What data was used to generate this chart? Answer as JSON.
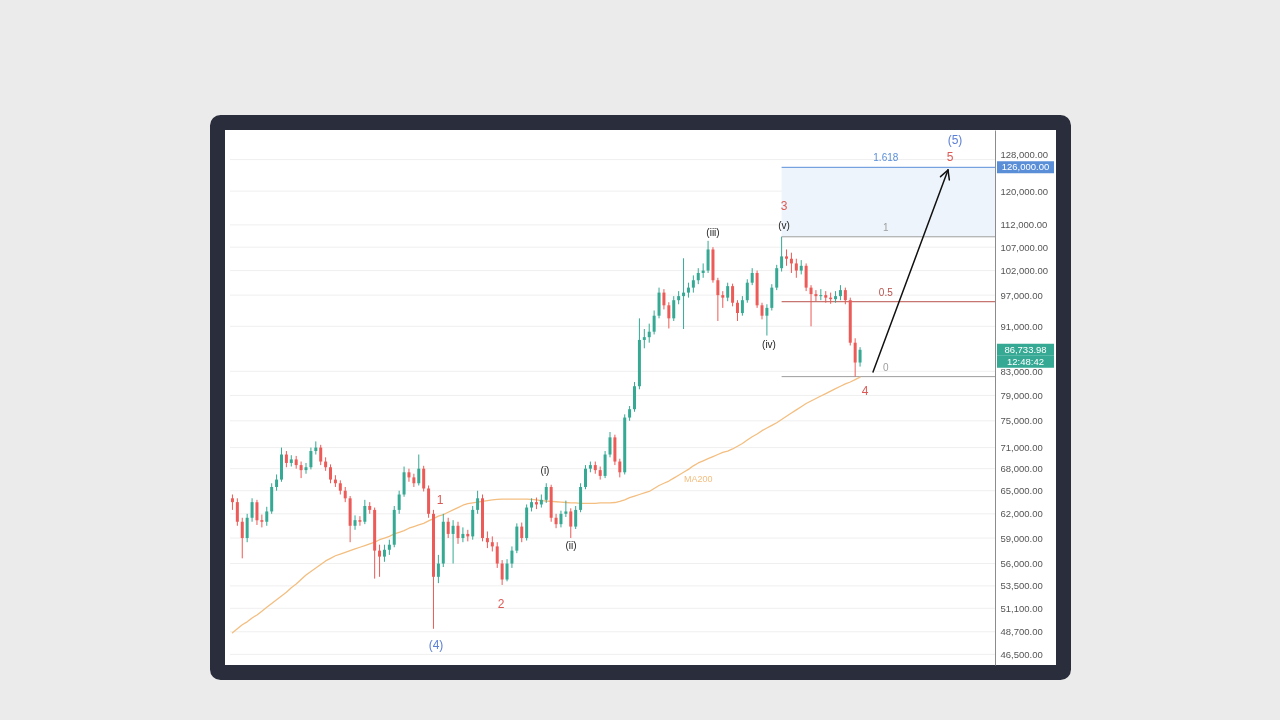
{
  "chart_data": {
    "type": "candlestick",
    "categories": [
      null,
      null,
      null,
      null,
      null,
      null,
      null,
      null,
      null,
      null,
      null,
      null,
      null,
      null,
      null,
      null,
      null,
      null,
      null,
      null,
      null,
      null,
      null,
      null,
      null,
      null,
      null,
      null,
      null,
      null,
      null,
      null,
      null,
      null,
      null,
      null,
      null,
      null,
      null,
      null,
      null,
      null,
      null,
      null,
      null,
      null,
      null,
      null,
      null,
      null,
      null,
      null,
      null,
      null,
      null,
      null,
      null,
      null,
      null,
      null,
      null,
      null,
      null,
      null,
      null,
      null,
      null,
      null,
      null,
      null,
      null,
      null,
      null,
      null,
      null,
      null,
      null,
      null,
      null,
      null,
      null,
      null,
      null,
      null,
      null,
      null,
      null,
      null,
      null,
      null,
      null,
      null,
      null,
      null,
      null,
      null,
      null,
      null,
      null,
      null,
      null,
      null,
      null,
      null,
      null,
      null,
      null,
      null,
      null,
      null,
      null,
      null,
      null,
      null,
      null,
      null,
      null,
      null,
      null,
      null,
      null,
      null,
      null,
      null,
      null,
      null,
      null,
      null,
      null
    ],
    "ohlc": [
      [
        64000,
        64500,
        62500,
        63500
      ],
      [
        63500,
        64000,
        60500,
        61000
      ],
      [
        61000,
        61500,
        56600,
        59000
      ],
      [
        59000,
        62000,
        58500,
        61500
      ],
      [
        61500,
        64000,
        61000,
        63500
      ],
      [
        63500,
        63800,
        60600,
        61200
      ],
      [
        61200,
        61900,
        60300,
        61000
      ],
      [
        61000,
        62900,
        60500,
        62300
      ],
      [
        62300,
        66000,
        62000,
        65500
      ],
      [
        65500,
        67200,
        65000,
        66500
      ],
      [
        66500,
        71000,
        66200,
        70000
      ],
      [
        70000,
        70500,
        68200,
        68800
      ],
      [
        68800,
        69900,
        68300,
        69300
      ],
      [
        69300,
        69800,
        68000,
        68500
      ],
      [
        68500,
        69000,
        66700,
        67800
      ],
      [
        67800,
        68800,
        67300,
        68200
      ],
      [
        68200,
        71000,
        67900,
        70500
      ],
      [
        70500,
        71900,
        70000,
        71000
      ],
      [
        71000,
        71400,
        68500,
        69000
      ],
      [
        69000,
        69600,
        67700,
        68200
      ],
      [
        68200,
        68600,
        66000,
        66500
      ],
      [
        66500,
        67100,
        65500,
        66000
      ],
      [
        66000,
        66400,
        64500,
        65000
      ],
      [
        65000,
        65500,
        63500,
        64000
      ],
      [
        64000,
        64300,
        58500,
        60500
      ],
      [
        60500,
        61800,
        60000,
        61200
      ],
      [
        61200,
        61700,
        60500,
        61000
      ],
      [
        61000,
        63800,
        60700,
        63000
      ],
      [
        63000,
        63500,
        62000,
        62500
      ],
      [
        62500,
        62800,
        54300,
        57500
      ],
      [
        57500,
        58200,
        54500,
        56800
      ],
      [
        56800,
        58200,
        56200,
        57600
      ],
      [
        57600,
        58800,
        57000,
        58200
      ],
      [
        58200,
        63000,
        57900,
        62500
      ],
      [
        62500,
        65000,
        62000,
        64500
      ],
      [
        64500,
        68300,
        64200,
        67500
      ],
      [
        67500,
        68000,
        66200,
        66800
      ],
      [
        66800,
        67300,
        65500,
        66000
      ],
      [
        66000,
        70000,
        65700,
        68000
      ],
      [
        68000,
        68400,
        64900,
        65300
      ],
      [
        65300,
        65700,
        61500,
        62000
      ],
      [
        62000,
        62500,
        49000,
        54500
      ],
      [
        54500,
        57000,
        53800,
        56000
      ],
      [
        56000,
        62000,
        55600,
        61000
      ],
      [
        61000,
        61500,
        59000,
        59500
      ],
      [
        59500,
        61200,
        56000,
        60500
      ],
      [
        60500,
        61000,
        58300,
        59000
      ],
      [
        59000,
        60300,
        58500,
        59500
      ],
      [
        59500,
        60000,
        58600,
        59200
      ],
      [
        59200,
        63000,
        58800,
        62500
      ],
      [
        62500,
        65000,
        62000,
        64000
      ],
      [
        64000,
        64500,
        58600,
        59000
      ],
      [
        59000,
        59800,
        57800,
        58500
      ],
      [
        58500,
        59200,
        57400,
        58000
      ],
      [
        58000,
        58500,
        55500,
        56000
      ],
      [
        56000,
        56400,
        53600,
        54200
      ],
      [
        54200,
        56500,
        54000,
        56000
      ],
      [
        56000,
        58000,
        55500,
        57500
      ],
      [
        57500,
        60800,
        57200,
        60400
      ],
      [
        60400,
        60900,
        58500,
        59000
      ],
      [
        59000,
        63200,
        58700,
        62800
      ],
      [
        62800,
        64000,
        62300,
        63500
      ],
      [
        63500,
        64100,
        62600,
        63200
      ],
      [
        63200,
        64500,
        62800,
        63800
      ],
      [
        63800,
        66000,
        63400,
        65500
      ],
      [
        65500,
        65800,
        61000,
        61500
      ],
      [
        61500,
        62000,
        60200,
        60700
      ],
      [
        60700,
        62400,
        60300,
        62000
      ],
      [
        62000,
        63700,
        61600,
        62300
      ],
      [
        62300,
        62700,
        59000,
        60400
      ],
      [
        60400,
        63000,
        60100,
        62500
      ],
      [
        62500,
        66000,
        62200,
        65500
      ],
      [
        65500,
        68500,
        65200,
        68000
      ],
      [
        68000,
        69000,
        67500,
        68500
      ],
      [
        68500,
        69000,
        67300,
        67800
      ],
      [
        67800,
        68300,
        66500,
        67000
      ],
      [
        67000,
        70500,
        66700,
        70000
      ],
      [
        70000,
        73300,
        69600,
        72500
      ],
      [
        72500,
        72900,
        68500,
        69000
      ],
      [
        69000,
        69400,
        66800,
        67500
      ],
      [
        67500,
        76000,
        67200,
        75500
      ],
      [
        75500,
        77300,
        75000,
        76800
      ],
      [
        76800,
        81200,
        76400,
        80500
      ],
      [
        80500,
        92500,
        80000,
        88500
      ],
      [
        88500,
        90500,
        87000,
        89000
      ],
      [
        89000,
        91500,
        88000,
        90000
      ],
      [
        90000,
        94000,
        89500,
        93000
      ],
      [
        93000,
        98500,
        92500,
        97500
      ],
      [
        97500,
        98200,
        94200,
        95000
      ],
      [
        95000,
        95600,
        90600,
        92500
      ],
      [
        92500,
        96800,
        92000,
        96000
      ],
      [
        96000,
        97800,
        95200,
        96800
      ],
      [
        96800,
        104600,
        90500,
        97500
      ],
      [
        97500,
        99500,
        96500,
        98500
      ],
      [
        98500,
        101000,
        97500,
        100000
      ],
      [
        100000,
        102500,
        99200,
        101500
      ],
      [
        101500,
        103500,
        100500,
        102000
      ],
      [
        102000,
        108400,
        101500,
        106500
      ],
      [
        106500,
        107000,
        99500,
        100000
      ],
      [
        100000,
        100500,
        92000,
        97000
      ],
      [
        97000,
        97800,
        94500,
        96500
      ],
      [
        96500,
        99500,
        95800,
        98800
      ],
      [
        98800,
        99300,
        94800,
        95500
      ],
      [
        95500,
        96000,
        92000,
        93500
      ],
      [
        93500,
        96800,
        93000,
        96000
      ],
      [
        96000,
        100200,
        95500,
        99500
      ],
      [
        99500,
        102500,
        99000,
        101500
      ],
      [
        101500,
        102000,
        94500,
        95000
      ],
      [
        95000,
        95500,
        92300,
        93000
      ],
      [
        93000,
        95200,
        89300,
        94500
      ],
      [
        94500,
        99200,
        94000,
        98500
      ],
      [
        98500,
        103200,
        98000,
        102500
      ],
      [
        102500,
        109300,
        101800,
        105000
      ],
      [
        105000,
        106500,
        103000,
        104500
      ],
      [
        104500,
        105800,
        101500,
        103500
      ],
      [
        103500,
        104500,
        100500,
        102000
      ],
      [
        102000,
        104200,
        101200,
        103000
      ],
      [
        103000,
        103500,
        97800,
        98500
      ],
      [
        98500,
        99000,
        91000,
        97200
      ],
      [
        97200,
        98000,
        95800,
        96800
      ],
      [
        96800,
        98200,
        96000,
        97000
      ],
      [
        97000,
        97800,
        95500,
        96500
      ],
      [
        96500,
        97500,
        95300,
        96200
      ],
      [
        96200,
        97800,
        95500,
        96800
      ],
      [
        96800,
        99000,
        96000,
        98000
      ],
      [
        98000,
        98500,
        95200,
        96000
      ],
      [
        96000,
        96500,
        87500,
        88000
      ],
      [
        88000,
        88800,
        82100,
        84500
      ],
      [
        84500,
        87200,
        83800,
        86733.98
      ]
    ],
    "colors": [
      "#ec5b57",
      "#ec5b57",
      "#ec5b57",
      "#35a994",
      "#35a994",
      "#ec5b57",
      "#ec5b57",
      "#35a994",
      "#35a994",
      "#35a994",
      "#35a994",
      "#ec5b57",
      "#35a994",
      "#ec5b57",
      "#ec5b57",
      "#35a994",
      "#35a994",
      "#35a994",
      "#ec5b57",
      "#ec5b57",
      "#ec5b57",
      "#ec5b57",
      "#ec5b57",
      "#ec5b57",
      "#ec5b57",
      "#35a994",
      "#ec5b57",
      "#35a994",
      "#ec5b57",
      "#ec5b57",
      "#ec5b57",
      "#35a994",
      "#35a994",
      "#35a994",
      "#35a994",
      "#35a994",
      "#ec5b57",
      "#ec5b57",
      "#35a994",
      "#ec5b57",
      "#ec5b57",
      "#ec5b57",
      "#35a994",
      "#35a994",
      "#ec5b57",
      "#35a994",
      "#ec5b57",
      "#35a994",
      "#ec5b57",
      "#35a994",
      "#35a994",
      "#ec5b57",
      "#ec5b57",
      "#ec5b57",
      "#ec5b57",
      "#ec5b57",
      "#35a994",
      "#35a994",
      "#35a994",
      "#ec5b57",
      "#35a994",
      "#35a994",
      "#ec5b57",
      "#35a994",
      "#35a994",
      "#ec5b57",
      "#ec5b57",
      "#35a994",
      "#35a994",
      "#ec5b57",
      "#35a994",
      "#35a994",
      "#35a994",
      "#35a994",
      "#ec5b57",
      "#ec5b57",
      "#35a994",
      "#35a994",
      "#ec5b57",
      "#ec5b57",
      "#35a994",
      "#35a994",
      "#35a994",
      "#35a994",
      "#35a994",
      "#35a994",
      "#35a994",
      "#35a994",
      "#ec5b57",
      "#ec5b57",
      "#35a994",
      "#35a994",
      "#35a994",
      "#35a994",
      "#35a994",
      "#35a994",
      "#35a994",
      "#35a994",
      "#ec5b57",
      "#ec5b57",
      "#ec5b57",
      "#35a994",
      "#ec5b57",
      "#ec5b57",
      "#35a994",
      "#35a994",
      "#35a994",
      "#ec5b57",
      "#ec5b57",
      "#35a994",
      "#35a994",
      "#35a994",
      "#35a994",
      "#ec5b57",
      "#ec5b57",
      "#ec5b57",
      "#35a994",
      "#ec5b57",
      "#ec5b57",
      "#ec5b57",
      "#35a994",
      "#ec5b57",
      "#ec5b57",
      "#35a994",
      "#35a994",
      "#ec5b57",
      "#ec5b57",
      "#ec5b57",
      "#35a994"
    ],
    "series": [
      {
        "type": "line",
        "name": "MA200",
        "color": "#f3be80",
        "values": [
          48600,
          49000,
          49400,
          49700,
          50100,
          50400,
          50800,
          51200,
          51600,
          52000,
          52400,
          52800,
          53300,
          53700,
          54200,
          54700,
          55100,
          55500,
          55900,
          56300,
          56600,
          56900,
          57100,
          57300,
          57500,
          57700,
          57900,
          58100,
          58300,
          58500,
          58800,
          59000,
          59200,
          59500,
          59700,
          59900,
          60200,
          60400,
          60600,
          60800,
          61100,
          61400,
          61700,
          61900,
          62200,
          62500,
          62800,
          63100,
          63300,
          63400,
          63500,
          63600,
          63700,
          63800,
          63850,
          63900,
          63900,
          63900,
          63900,
          63900,
          63900,
          63850,
          63800,
          63700,
          63650,
          63600,
          63550,
          63500,
          63450,
          63400,
          63400,
          63350,
          63350,
          63350,
          63350,
          63400,
          63400,
          63400,
          63450,
          63600,
          63800,
          64100,
          64300,
          64500,
          64700,
          64900,
          65300,
          65700,
          66000,
          66300,
          66700,
          67100,
          67500,
          67900,
          68400,
          68800,
          69100,
          69400,
          69700,
          70000,
          70300,
          70500,
          70800,
          71200,
          71600,
          72100,
          72600,
          73000,
          73500,
          73900,
          74300,
          74700,
          75200,
          75700,
          76200,
          76700,
          77200,
          77700,
          78100,
          78500,
          78900,
          79300,
          79700,
          80100,
          80500,
          80900,
          81200,
          81600,
          82000
        ]
      }
    ],
    "ylim": [
      45500,
      136000
    ],
    "yticks": [
      {
        "value": 46500,
        "label": "46,500.00"
      },
      {
        "value": 48700,
        "label": "48,700.00"
      },
      {
        "value": 51100,
        "label": "51,100.00"
      },
      {
        "value": 53500,
        "label": "53,500.00"
      },
      {
        "value": 56000,
        "label": "56,000.00"
      },
      {
        "value": 59000,
        "label": "59,000.00"
      },
      {
        "value": 62000,
        "label": "62,000.00"
      },
      {
        "value": 65000,
        "label": "65,000.00"
      },
      {
        "value": 68000,
        "label": "68,000.00"
      },
      {
        "value": 71000,
        "label": "71,000.00"
      },
      {
        "value": 75000,
        "label": "75,000.00"
      },
      {
        "value": 79000,
        "label": "79,000.00"
      },
      {
        "value": 83000,
        "label": "83,000.00"
      },
      {
        "value": 91000,
        "label": "91,000.00"
      },
      {
        "value": 97000,
        "label": "97,000.00"
      },
      {
        "value": 102000,
        "label": "102,000.00"
      },
      {
        "value": 107000,
        "label": "107,000.00"
      },
      {
        "value": 112000,
        "label": "112,000.00"
      },
      {
        "value": 120000,
        "label": "120,000.00"
      },
      {
        "value": 128000,
        "label": "128,000.00"
      }
    ],
    "log": true,
    "grid": "y",
    "tick_labels": "y",
    "bands": [
      {
        "axis": "y",
        "from": 109300,
        "to": 126000,
        "color": "#eef4fb"
      }
    ],
    "ref_lines": [
      {
        "axis": "y",
        "value": 126000,
        "color": "#5a8fd8"
      },
      {
        "axis": "y",
        "value": 109300,
        "color": "#9e9e9e"
      },
      {
        "axis": "y",
        "value": 95700,
        "color": "#b8524d"
      },
      {
        "axis": "y",
        "value": 82100,
        "color": "#9e9e9e"
      }
    ],
    "annotations": [
      "(4)",
      "1",
      "2",
      "(i)",
      "(ii)",
      "(iii)",
      "(iv)",
      "(v)",
      "3",
      "4",
      "5",
      "(5)",
      "1.618",
      "1",
      "0.5",
      "0",
      "126,000.00",
      "86,733.98",
      "12:48:42"
    ]
  }
}
